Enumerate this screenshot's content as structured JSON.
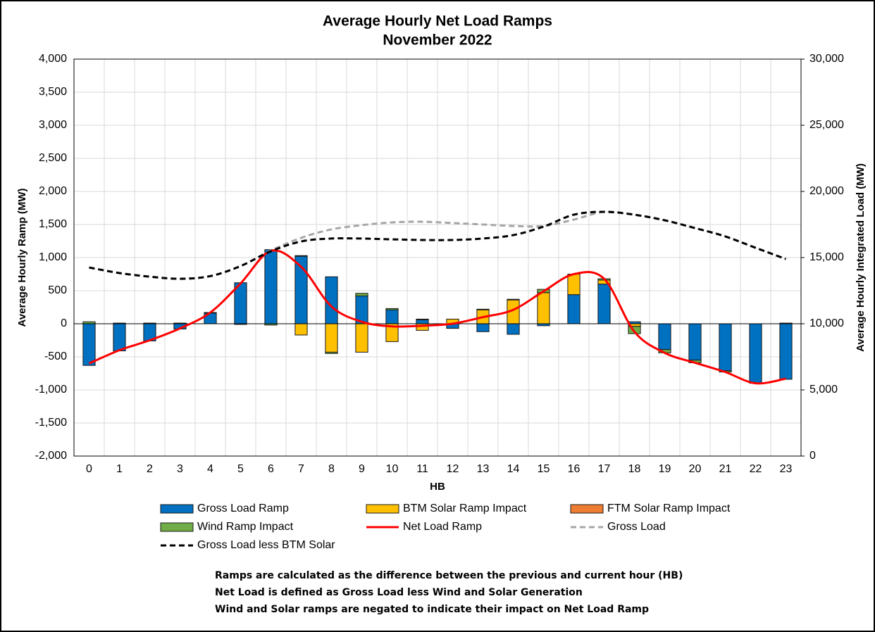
{
  "chart_data": {
    "type": "bar",
    "title": "Average Hourly Net Load Ramps",
    "subtitle": "November 2022",
    "x_label": "HB",
    "y_label": "Average Hourly Ramp (MW)",
    "y2_label": "Average Hourly Integrated Load (MW)",
    "categories": [
      "0",
      "1",
      "2",
      "3",
      "4",
      "5",
      "6",
      "7",
      "8",
      "9",
      "10",
      "11",
      "12",
      "13",
      "14",
      "15",
      "16",
      "17",
      "18",
      "19",
      "20",
      "21",
      "22",
      "23"
    ],
    "ylim": [
      -2000,
      4000
    ],
    "yticks": [
      {
        "value": -2000,
        "label": "-2,000"
      },
      {
        "value": -1500,
        "label": "-1,500"
      },
      {
        "value": -1000,
        "label": "-1,000"
      },
      -500,
      0,
      500,
      {
        "value": 1000,
        "label": "1,000"
      },
      {
        "value": 1500,
        "label": "1,500"
      },
      {
        "value": 2000,
        "label": "2,000"
      },
      {
        "value": 2500,
        "label": "2,500"
      },
      {
        "value": 3000,
        "label": "3,000"
      },
      {
        "value": 3500,
        "label": "3,500"
      },
      {
        "value": 4000,
        "label": "4,000"
      }
    ],
    "y2lim": [
      0,
      30000
    ],
    "y2ticks": [
      0,
      {
        "value": 5000,
        "label": "5,000"
      },
      {
        "value": 10000,
        "label": "10,000"
      },
      {
        "value": 15000,
        "label": "15,000"
      },
      {
        "value": 20000,
        "label": "20,000"
      },
      {
        "value": 25000,
        "label": "25,000"
      },
      {
        "value": 30000,
        "label": "30,000"
      }
    ],
    "grid": true,
    "series": [
      {
        "name": "Gross Load Ramp",
        "type": "bar",
        "color": "#0070c0",
        "values": [
          -630,
          -410,
          -260,
          -80,
          160,
          620,
          1120,
          1020,
          710,
          420,
          210,
          60,
          -70,
          -120,
          -160,
          -30,
          440,
          600,
          30,
          -390,
          -550,
          -710,
          -900,
          -840
        ]
      },
      {
        "name": "BTM Solar Ramp Impact",
        "type": "bar",
        "color": "#ffc000",
        "values": [
          0,
          0,
          0,
          0,
          0,
          0,
          0,
          -170,
          -430,
          -430,
          -270,
          -100,
          70,
          210,
          360,
          470,
          310,
          60,
          -40,
          0,
          0,
          0,
          0,
          0
        ]
      },
      {
        "name": "FTM Solar Ramp Impact",
        "type": "bar",
        "color": "#ed7d31",
        "values": [
          0,
          0,
          0,
          0,
          0,
          0,
          0,
          0,
          0,
          0,
          0,
          0,
          0,
          0,
          0,
          0,
          0,
          0,
          0,
          0,
          0,
          0,
          0,
          0
        ]
      },
      {
        "name": "Wind Ramp Impact",
        "type": "bar",
        "color": "#70ad47",
        "values": [
          30,
          10,
          10,
          10,
          10,
          -10,
          -20,
          10,
          -20,
          40,
          20,
          10,
          0,
          10,
          10,
          50,
          0,
          20,
          -110,
          -50,
          -40,
          -20,
          0,
          10
        ]
      },
      {
        "name": "Net Load Ramp",
        "type": "line",
        "color": "#ff0000",
        "values": [
          -600,
          -400,
          -250,
          -70,
          170,
          610,
          1100,
          860,
          260,
          30,
          -40,
          -30,
          0,
          100,
          210,
          490,
          750,
          680,
          -120,
          -440,
          -590,
          -730,
          -900,
          -830
        ]
      },
      {
        "name": "Gross Load",
        "type": "line",
        "axis": "y2",
        "dash": true,
        "color": "#a6a6a6",
        "values": [
          14250,
          13830,
          13560,
          13400,
          13600,
          14360,
          15530,
          16490,
          17130,
          17450,
          17660,
          17710,
          17610,
          17500,
          17390,
          17390,
          17870,
          18460,
          18240,
          17820,
          17230,
          16600,
          15740,
          14890
        ]
      },
      {
        "name": "Gross Load less BTM Solar",
        "type": "line",
        "axis": "y2",
        "dash": true,
        "color": "#000000",
        "values": [
          14250,
          13830,
          13560,
          13400,
          13600,
          14360,
          15480,
          16220,
          16440,
          16440,
          16380,
          16330,
          16330,
          16440,
          16700,
          17340,
          18240,
          18460,
          18240,
          17820,
          17230,
          16600,
          15740,
          14890
        ]
      }
    ],
    "notes": [
      "Ramps are calculated as the difference between the previous and current hour (HB)",
      "Net Load is defined as Gross Load less Wind and Solar Generation",
      "Wind and Solar ramps are negated to indicate their impact on Net Load Ramp"
    ]
  }
}
